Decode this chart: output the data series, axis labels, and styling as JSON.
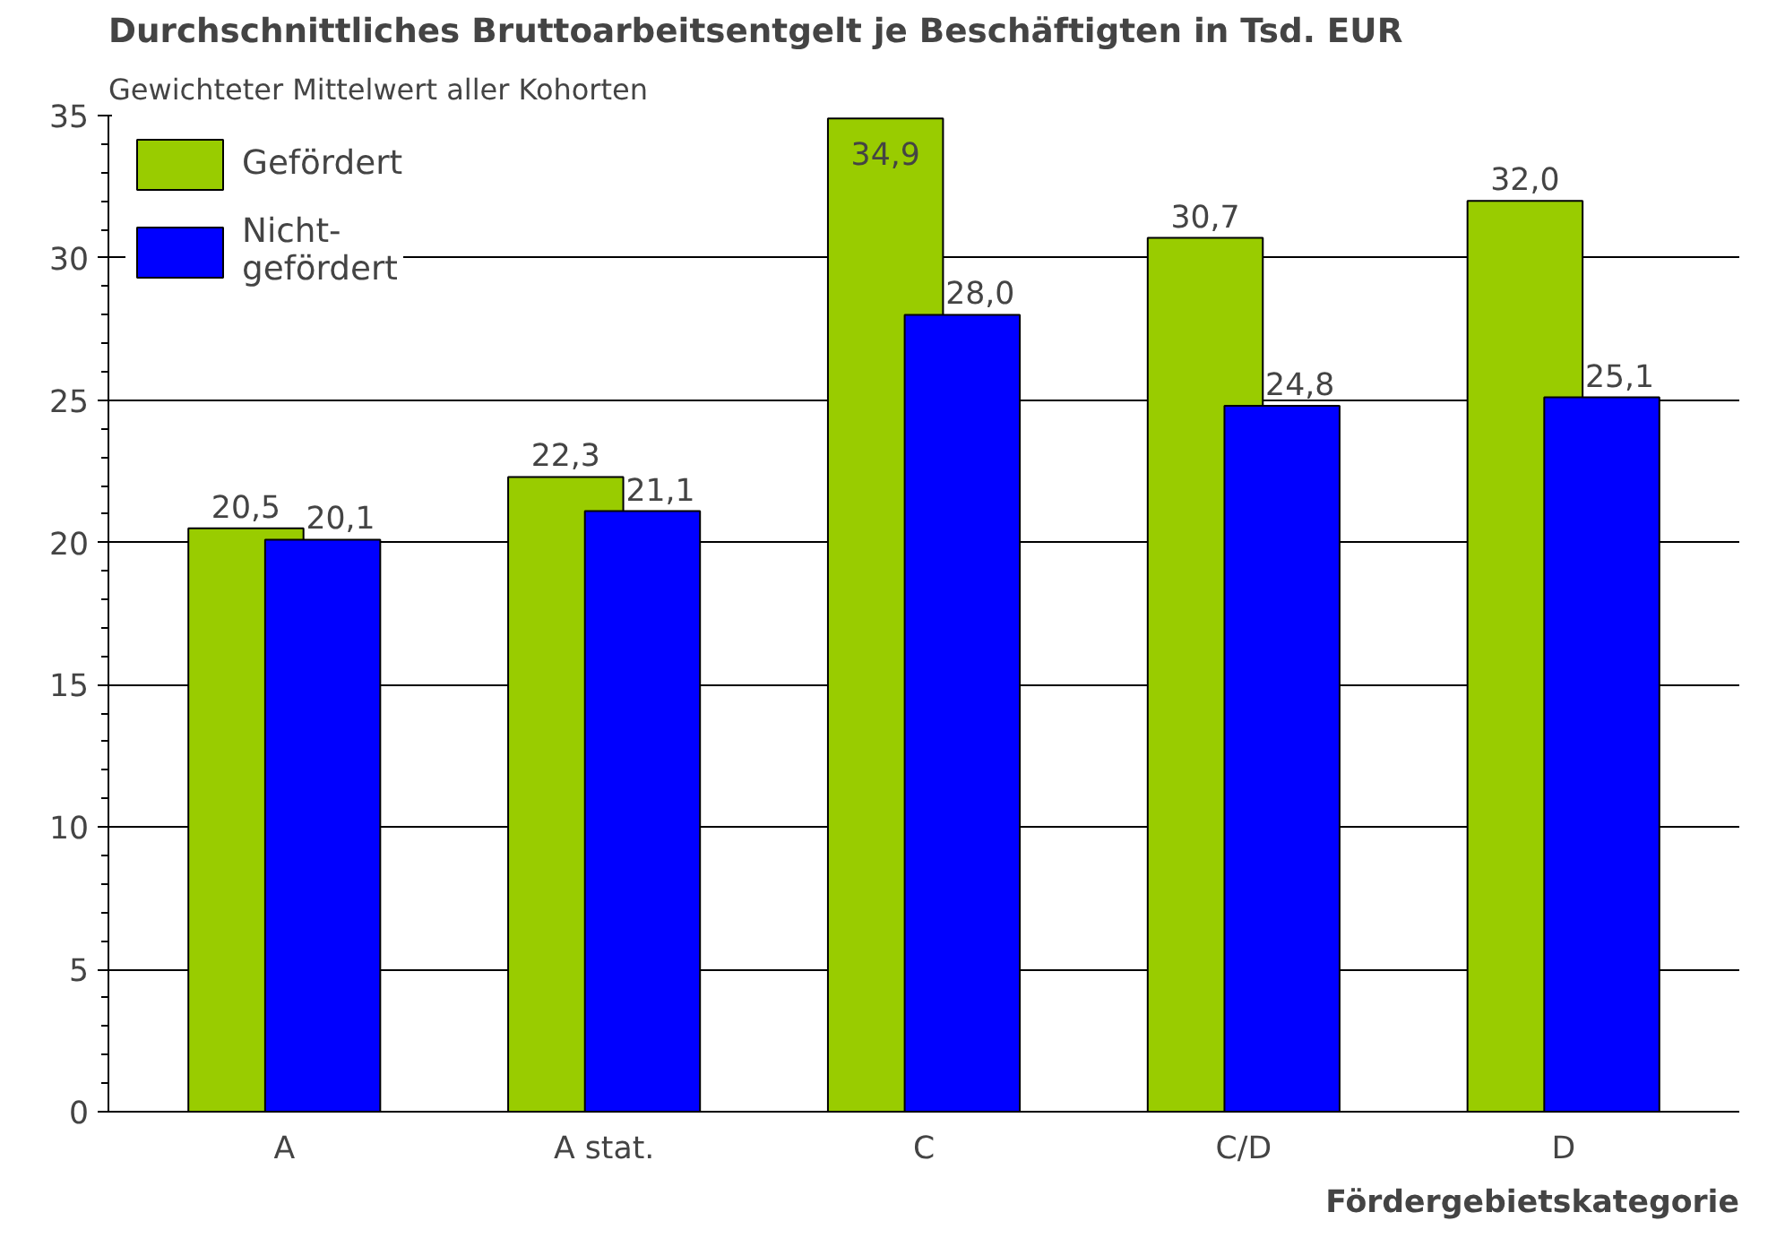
{
  "chart_data": {
    "type": "bar",
    "title": "Durchschnittliches Bruttoarbeitsentgelt je Beschäftigten in Tsd. EUR",
    "subtitle": "Gewichteter Mittelwert aller Kohorten",
    "xlabel": "Fördergebietskategorie",
    "categories": [
      "A",
      "A stat.",
      "C",
      "C/D",
      "D"
    ],
    "series": [
      {
        "name": "Gefördert",
        "color": "#99cc00",
        "values": [
          20.5,
          22.3,
          34.9,
          30.7,
          32.0
        ],
        "value_labels": [
          "20,5",
          "22,3",
          "34,9",
          "30,7",
          "32,0"
        ]
      },
      {
        "name": "Nicht-\ngefördert",
        "color": "#0000ff",
        "values": [
          20.1,
          21.1,
          28.0,
          24.8,
          25.1
        ],
        "value_labels": [
          "20,1",
          "21,1",
          "28,0",
          "24,8",
          "25,1"
        ]
      }
    ],
    "ylim": [
      0,
      35
    ],
    "yticks": [
      0,
      5,
      10,
      15,
      20,
      25,
      30,
      35
    ],
    "grid": "y",
    "legend": "top left"
  }
}
